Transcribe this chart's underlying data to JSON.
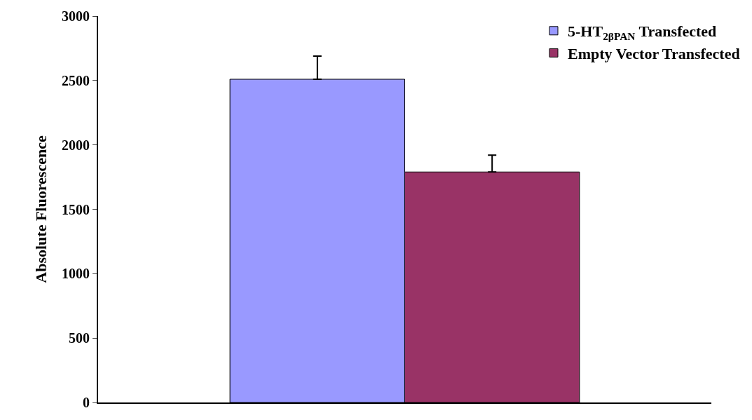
{
  "chart_data": {
    "type": "bar",
    "ylabel": "Absolute Fluorescence",
    "categories": [
      null
    ],
    "series": [
      {
        "name": "5-HT$_{2βPAN}$ Transfected",
        "color": "#9999ff",
        "values": [
          2510
        ],
        "errors": [
          [
            2510,
            2690
          ]
        ]
      },
      {
        "name": "Empty Vector Transfected",
        "color": "#993366",
        "values": [
          1790
        ],
        "errors": [
          [
            1790,
            1920
          ]
        ]
      }
    ],
    "ylim": [
      0,
      3000
    ],
    "yticks": [
      0,
      500,
      1000,
      1500,
      2000,
      2500,
      3000
    ],
    "grid": false,
    "legend": "top right"
  }
}
